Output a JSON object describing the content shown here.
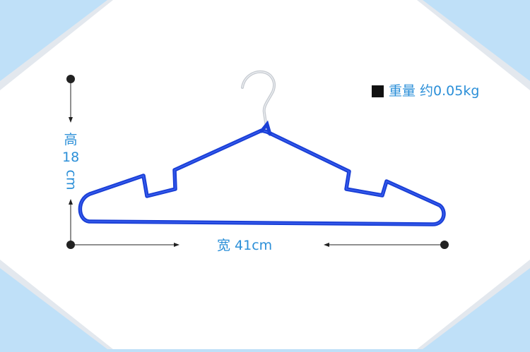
{
  "specs": {
    "weight_text": "重量 约0.05kg",
    "height_char": "高",
    "height_value": "18",
    "height_unit": "cm",
    "width_text": "宽 41cm"
  },
  "colors": {
    "background_corner": "#bfe0f8",
    "panel": "#ffffff",
    "hanger_wire": "#1a3fd6",
    "hook": "#c8ccd2",
    "label_text": "#2b8fd8",
    "dimension_line": "#111111"
  },
  "icons": {
    "bullet": "black-square-icon",
    "endpoint": "dot-icon"
  }
}
